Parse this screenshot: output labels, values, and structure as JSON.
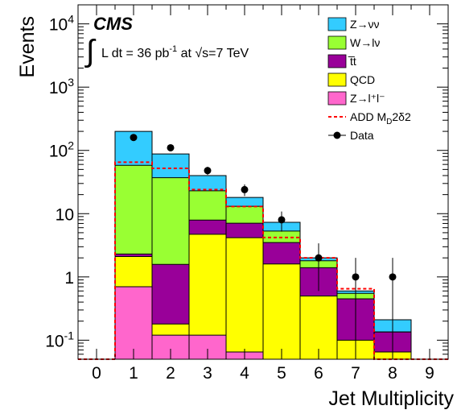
{
  "chart_data": {
    "type": "bar",
    "stacked": true,
    "y_scale": "log",
    "x": [
      0,
      1,
      2,
      3,
      4,
      5,
      6,
      7,
      8,
      9
    ],
    "xlim": [
      -0.5,
      9.5
    ],
    "ylim": [
      0.05,
      20000
    ],
    "xlabel": "Jet Multiplicity",
    "ylabel": "Events",
    "x_tick_labels": [
      "0",
      "1",
      "2",
      "3",
      "4",
      "5",
      "6",
      "7",
      "8",
      "9"
    ],
    "y_tick_labels": [
      {
        "value": 0.1,
        "base": "10",
        "exp": "-1"
      },
      {
        "value": 1,
        "base": "1",
        "exp": ""
      },
      {
        "value": 10,
        "base": "10",
        "exp": ""
      },
      {
        "value": 100,
        "base": "10",
        "exp": "2"
      },
      {
        "value": 1000,
        "base": "10",
        "exp": "3"
      },
      {
        "value": 10000,
        "base": "10",
        "exp": "4"
      }
    ],
    "series": [
      {
        "name": "Z→l⁺l⁻",
        "color": "#ff66cc",
        "values": [
          0,
          0.7,
          0.12,
          0.12,
          0.065,
          0,
          0,
          0,
          0,
          0
        ]
      },
      {
        "name": "QCD",
        "color": "#ffff00",
        "values": [
          0,
          1.4,
          0.06,
          4.6,
          4.1,
          1.6,
          0.5,
          0.1,
          0.065,
          0
        ]
      },
      {
        "name": "t̅t",
        "color": "#990099",
        "values": [
          0,
          0.2,
          1.4,
          3.2,
          2.9,
          1.9,
          0.9,
          0.35,
          0.07,
          0
        ]
      },
      {
        "name": "W→lν",
        "color": "#99ff33",
        "values": [
          0,
          55.7,
          35.4,
          15.1,
          6.0,
          1.8,
          0.4,
          0.1,
          0,
          0
        ]
      },
      {
        "name": "Z→νν",
        "color": "#33ccff",
        "values": [
          0,
          142,
          51,
          17,
          5,
          2,
          0.2,
          0.05,
          0.075,
          0
        ]
      }
    ],
    "signal": {
      "name": "ADD M_D2δ2",
      "color": "#ff0000",
      "values": [
        0.05,
        65,
        52,
        24,
        13,
        4.2,
        2.0,
        0.65,
        0.05,
        0.05
      ]
    },
    "data": {
      "name": "Data",
      "points": [
        {
          "x": 1,
          "y": 160,
          "lo": 148,
          "hi": 173
        },
        {
          "x": 2,
          "y": 110,
          "lo": 100,
          "hi": 121
        },
        {
          "x": 3,
          "y": 48,
          "lo": 41,
          "hi": 55
        },
        {
          "x": 4,
          "y": 24,
          "lo": 19,
          "hi": 29
        },
        {
          "x": 5,
          "y": 8,
          "lo": 5.2,
          "hi": 10.8
        },
        {
          "x": 6,
          "y": 2,
          "lo": 0.6,
          "hi": 3.4
        },
        {
          "x": 7,
          "y": 1,
          "lo": 0.05,
          "hi": 2.0
        },
        {
          "x": 8,
          "y": 1,
          "lo": 0.05,
          "hi": 2.0
        }
      ]
    },
    "annotations": {
      "experiment": "CMS",
      "lumi": "L dt = 36 pb",
      "lumi_exp": "-1",
      "energy": " at √s=7 TeV"
    },
    "legend": {
      "placement": "top-right",
      "entries": [
        {
          "label": "Z→νν",
          "color": "#33ccff",
          "kind": "box"
        },
        {
          "label": "W→lν",
          "color": "#99ff33",
          "kind": "box"
        },
        {
          "label": "t̅t",
          "color": "#990099",
          "kind": "box"
        },
        {
          "label": "QCD",
          "color": "#ffff00",
          "kind": "box"
        },
        {
          "label": "Z→l⁺l⁻",
          "color": "#ff66cc",
          "kind": "box"
        },
        {
          "label": "ADD M",
          "sub": "D",
          "tail": "2δ2",
          "color": "#ff0000",
          "kind": "dashed"
        },
        {
          "label": "Data",
          "color": "#000000",
          "kind": "marker"
        }
      ]
    }
  }
}
